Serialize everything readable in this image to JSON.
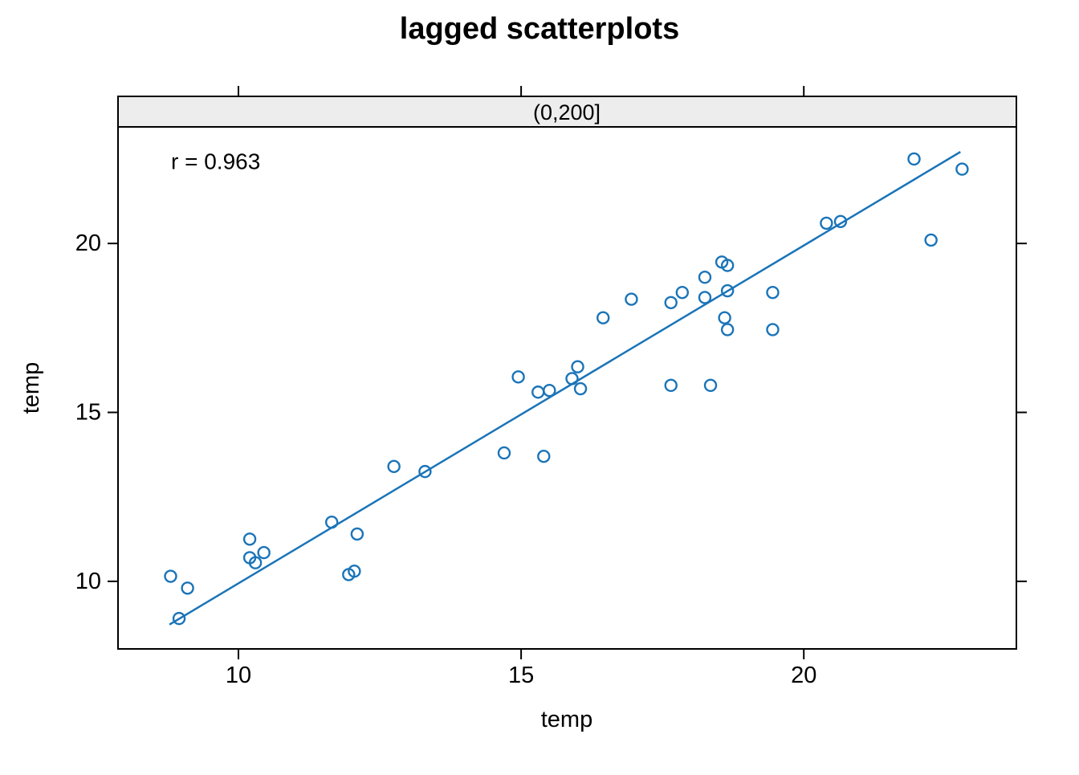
{
  "chart_data": {
    "type": "scatter",
    "title": "lagged scatterplots",
    "panel_label": "(0,200]",
    "annotation": "r = 0.963",
    "xlabel": "temp",
    "ylabel": "temp",
    "xlim": [
      7.87,
      23.76
    ],
    "ylim": [
      8.0,
      23.45
    ],
    "xticks": [
      10,
      15,
      20
    ],
    "yticks": [
      10,
      15,
      20
    ],
    "grid": false,
    "legend": "none",
    "marker": "open-circle",
    "point_color": "#1a74b8",
    "line_color": "#1a74b8",
    "strip_fill": "#ededed",
    "border_color": "#000000",
    "regression_line": {
      "x1": 8.78,
      "y1": 8.72,
      "x2": 22.77,
      "y2": 22.71
    },
    "points": [
      [
        8.8,
        10.15
      ],
      [
        9.1,
        9.8
      ],
      [
        8.95,
        8.9
      ],
      [
        10.2,
        11.25
      ],
      [
        10.2,
        10.7
      ],
      [
        10.3,
        10.55
      ],
      [
        10.45,
        10.85
      ],
      [
        11.65,
        11.75
      ],
      [
        12.1,
        11.4
      ],
      [
        11.95,
        10.2
      ],
      [
        12.05,
        10.3
      ],
      [
        12.75,
        13.4
      ],
      [
        13.3,
        13.25
      ],
      [
        14.7,
        13.8
      ],
      [
        15.4,
        13.7
      ],
      [
        14.95,
        16.05
      ],
      [
        15.3,
        15.6
      ],
      [
        15.5,
        15.65
      ],
      [
        15.9,
        16.0
      ],
      [
        16.0,
        16.35
      ],
      [
        16.05,
        15.7
      ],
      [
        16.45,
        17.8
      ],
      [
        16.95,
        18.35
      ],
      [
        17.65,
        18.25
      ],
      [
        17.65,
        15.8
      ],
      [
        17.85,
        18.55
      ],
      [
        18.25,
        18.4
      ],
      [
        18.25,
        19.0
      ],
      [
        18.35,
        15.8
      ],
      [
        18.55,
        19.45
      ],
      [
        18.65,
        19.35
      ],
      [
        18.65,
        18.6
      ],
      [
        18.6,
        17.8
      ],
      [
        18.65,
        17.45
      ],
      [
        19.45,
        18.55
      ],
      [
        19.45,
        17.45
      ],
      [
        20.4,
        20.6
      ],
      [
        20.65,
        20.65
      ],
      [
        21.95,
        22.5
      ],
      [
        22.25,
        20.1
      ],
      [
        22.8,
        22.2
      ]
    ]
  }
}
